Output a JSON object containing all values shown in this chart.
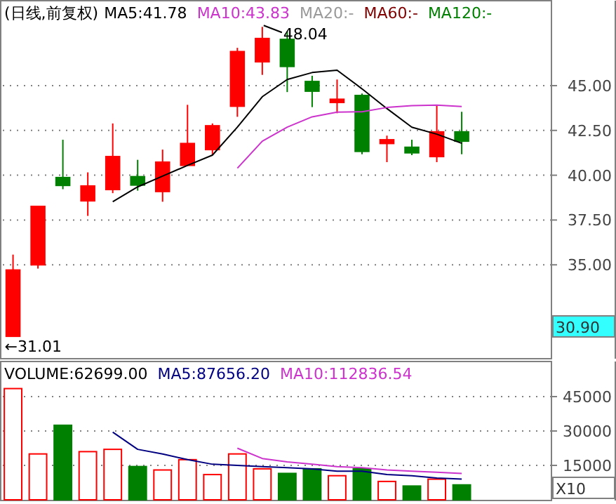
{
  "chart_data": [
    {
      "type": "candlestick",
      "title": "(日线,前复权)",
      "legend": "top left",
      "grid": "y",
      "categories": [
        null,
        null,
        null,
        null,
        null,
        null,
        null,
        null,
        null,
        null,
        null,
        null,
        null,
        null,
        null,
        null,
        null,
        null,
        null
      ],
      "ohlc": [
        [
          31.01,
          35.57,
          31.01,
          34.71
        ],
        [
          35.0,
          38.26,
          34.79,
          38.26
        ],
        [
          39.87,
          41.98,
          39.22,
          39.43
        ],
        [
          38.57,
          40.16,
          37.73,
          39.4
        ],
        [
          39.2,
          42.89,
          39.0,
          41.04
        ],
        [
          39.92,
          40.86,
          39.14,
          39.45
        ],
        [
          39.09,
          41.43,
          38.52,
          40.73
        ],
        [
          40.55,
          43.93,
          40.55,
          41.77
        ],
        [
          41.43,
          42.89,
          41.12,
          42.76
        ],
        [
          43.85,
          47.11,
          43.26,
          46.9
        ],
        [
          46.33,
          48.28,
          45.6,
          47.63
        ],
        [
          47.58,
          48.04,
          44.64,
          46.07
        ],
        [
          45.23,
          45.55,
          43.8,
          44.69
        ],
        [
          44.06,
          45.34,
          43.46,
          44.24
        ],
        [
          44.45,
          44.56,
          41.17,
          41.33
        ],
        [
          41.77,
          42.21,
          40.73,
          41.98
        ],
        [
          41.56,
          41.98,
          41.12,
          41.25
        ],
        [
          41.04,
          43.93,
          40.73,
          42.42
        ],
        [
          42.42,
          43.54,
          41.17,
          41.9
        ]
      ],
      "colors": [
        "#ff0000",
        "#ff0000",
        "#008000",
        "#ff0000",
        "#ff0000",
        "#008000",
        "#ff0000",
        "#ff0000",
        "#ff0000",
        "#ff0000",
        "#ff0000",
        "#008000",
        "#008000",
        "#ff0000",
        "#008000",
        "#ff0000",
        "#008000",
        "#ff0000",
        "#008000"
      ],
      "series": [
        {
          "name": "MA5:41.78",
          "type": "line",
          "color": "#000000",
          "values": [
            null,
            null,
            null,
            null,
            38.52,
            39.35,
            39.95,
            40.55,
            41.12,
            42.68,
            44.38,
            45.34,
            45.73,
            45.86,
            44.82,
            43.72,
            42.68,
            42.29,
            41.78
          ]
        },
        {
          "name": "MA10:43.83",
          "type": "line",
          "color": "#cc33cc",
          "values": [
            null,
            null,
            null,
            null,
            null,
            null,
            null,
            null,
            null,
            40.39,
            41.9,
            42.68,
            43.26,
            43.52,
            43.54,
            43.78,
            43.88,
            43.91,
            43.83
          ]
        },
        {
          "name": "MA20:-",
          "type": "line",
          "color": "#999999",
          "values": [
            null,
            null,
            null,
            null,
            null,
            null,
            null,
            null,
            null,
            null,
            null,
            null,
            null,
            null,
            null,
            null,
            null,
            null,
            null
          ]
        },
        {
          "name": "MA60:-",
          "type": "line",
          "color": "#800000",
          "values": [
            null,
            null,
            null,
            null,
            null,
            null,
            null,
            null,
            null,
            null,
            null,
            null,
            null,
            null,
            null,
            null,
            null,
            null,
            null
          ]
        },
        {
          "name": "MA120:-",
          "type": "line",
          "color": "#008000",
          "values": [
            null,
            null,
            null,
            null,
            null,
            null,
            null,
            null,
            null,
            null,
            null,
            null,
            null,
            null,
            null,
            null,
            null,
            null,
            null
          ]
        }
      ],
      "ylim": [
        29.8,
        49.7
      ],
      "yticks": [
        {
          "value": 35,
          "label": "35.00"
        },
        {
          "value": 37.5,
          "label": "37.50"
        },
        {
          "value": 40,
          "label": "40.00"
        },
        {
          "value": 42.5,
          "label": "42.50"
        },
        {
          "value": 45,
          "label": "45.00"
        }
      ],
      "annotations": [
        "30.90",
        "48.04",
        "←31.01"
      ]
    },
    {
      "type": "bar",
      "legend": "top left",
      "grid": "y",
      "categories": [
        null,
        null,
        null,
        null,
        null,
        null,
        null,
        null,
        null,
        null,
        null,
        null,
        null,
        null,
        null,
        null,
        null,
        null,
        null
      ],
      "series": [
        {
          "name": "VOLUME:62699.00",
          "type": "bar",
          "colors": [
            "#ff0000",
            "#ff0000",
            "#008000",
            "#ff0000",
            "#ff0000",
            "#008000",
            "#ff0000",
            "#ff0000",
            "#ff0000",
            "#ff0000",
            "#ff0000",
            "#008000",
            "#008000",
            "#ff0000",
            "#008000",
            "#ff0000",
            "#008000",
            "#ff0000",
            "#008000"
          ],
          "color": "#000000",
          "values": [
            48500,
            20000,
            32500,
            21000,
            22000,
            14500,
            13000,
            17500,
            11000,
            20000,
            13500,
            11500,
            13500,
            10500,
            13500,
            8000,
            6000,
            9000,
            6500
          ]
        },
        {
          "name": "MA5:87656.20",
          "type": "line",
          "color": "#000080",
          "values": [
            null,
            null,
            null,
            null,
            29500,
            22000,
            20000,
            17500,
            15500,
            15000,
            14500,
            14000,
            13500,
            12500,
            12500,
            11000,
            10500,
            9500,
            9000
          ]
        },
        {
          "name": "MA10:112836.54",
          "type": "line",
          "color": "#cc33cc",
          "values": [
            null,
            null,
            null,
            null,
            null,
            null,
            null,
            null,
            null,
            22500,
            18000,
            16500,
            15500,
            14500,
            14000,
            13000,
            12500,
            12000,
            11500
          ]
        }
      ],
      "ylim": [
        0,
        60000
      ],
      "yticks": [
        15000,
        30000,
        45000
      ],
      "annotations": [
        "X10"
      ]
    }
  ]
}
